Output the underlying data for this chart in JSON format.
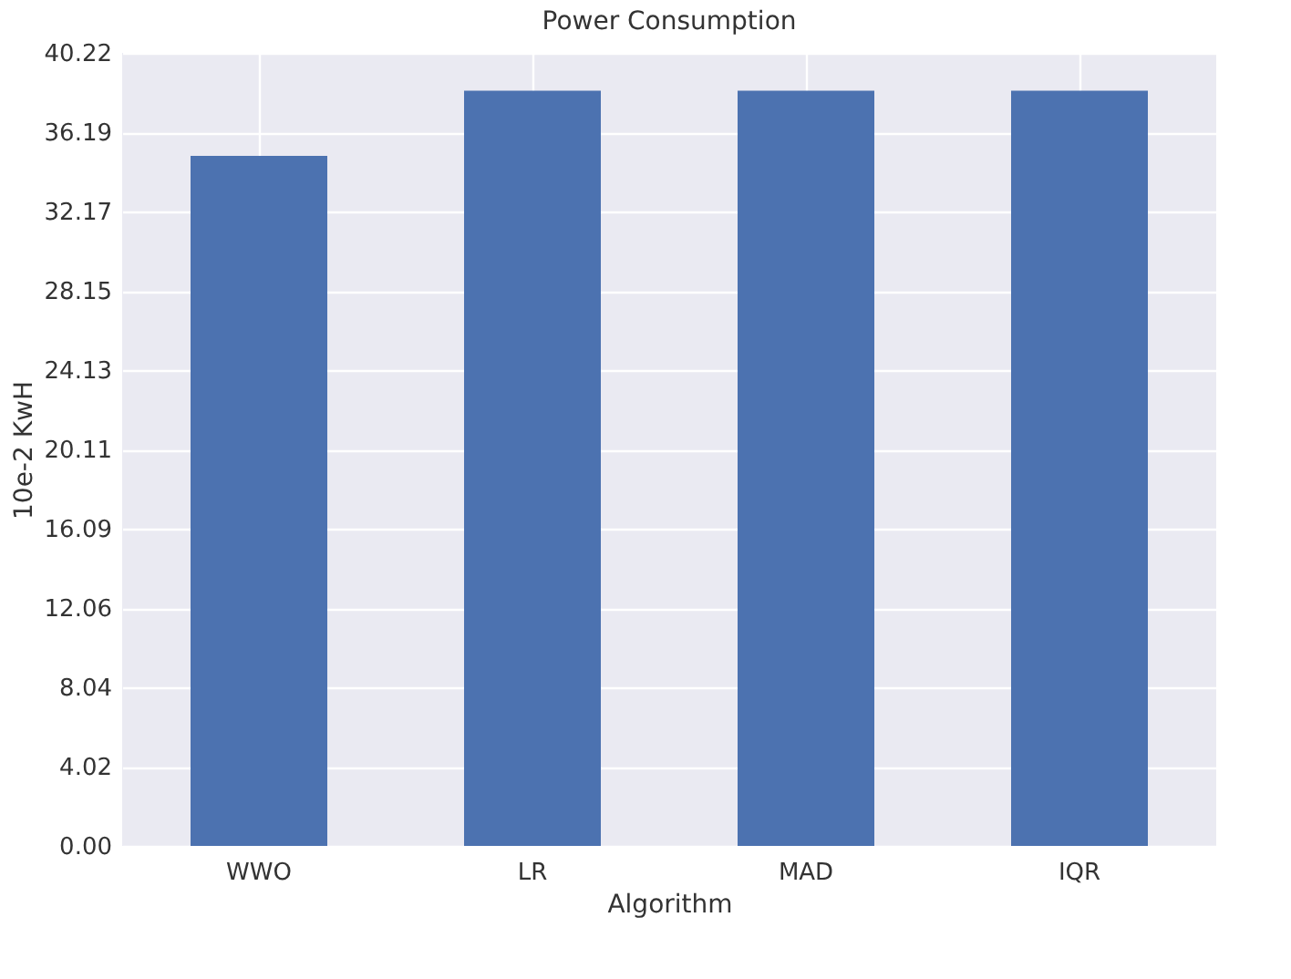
{
  "chart_data": {
    "type": "bar",
    "title": "Power Consumption",
    "xlabel": "Algorithm",
    "ylabel": "10e-2 KwH",
    "categories": [
      "WWO",
      "LR",
      "MAD",
      "IQR"
    ],
    "values": [
      35.0,
      38.3,
      38.3,
      38.3
    ],
    "color": "#4c72b0",
    "ylim": [
      0,
      40.22
    ],
    "yticks": [
      {
        "value": 0,
        "label": "0.00"
      },
      4.02,
      8.04,
      12.06,
      16.09,
      20.11,
      24.13,
      28.15,
      32.17,
      36.19,
      40.22
    ],
    "grid": true
  }
}
